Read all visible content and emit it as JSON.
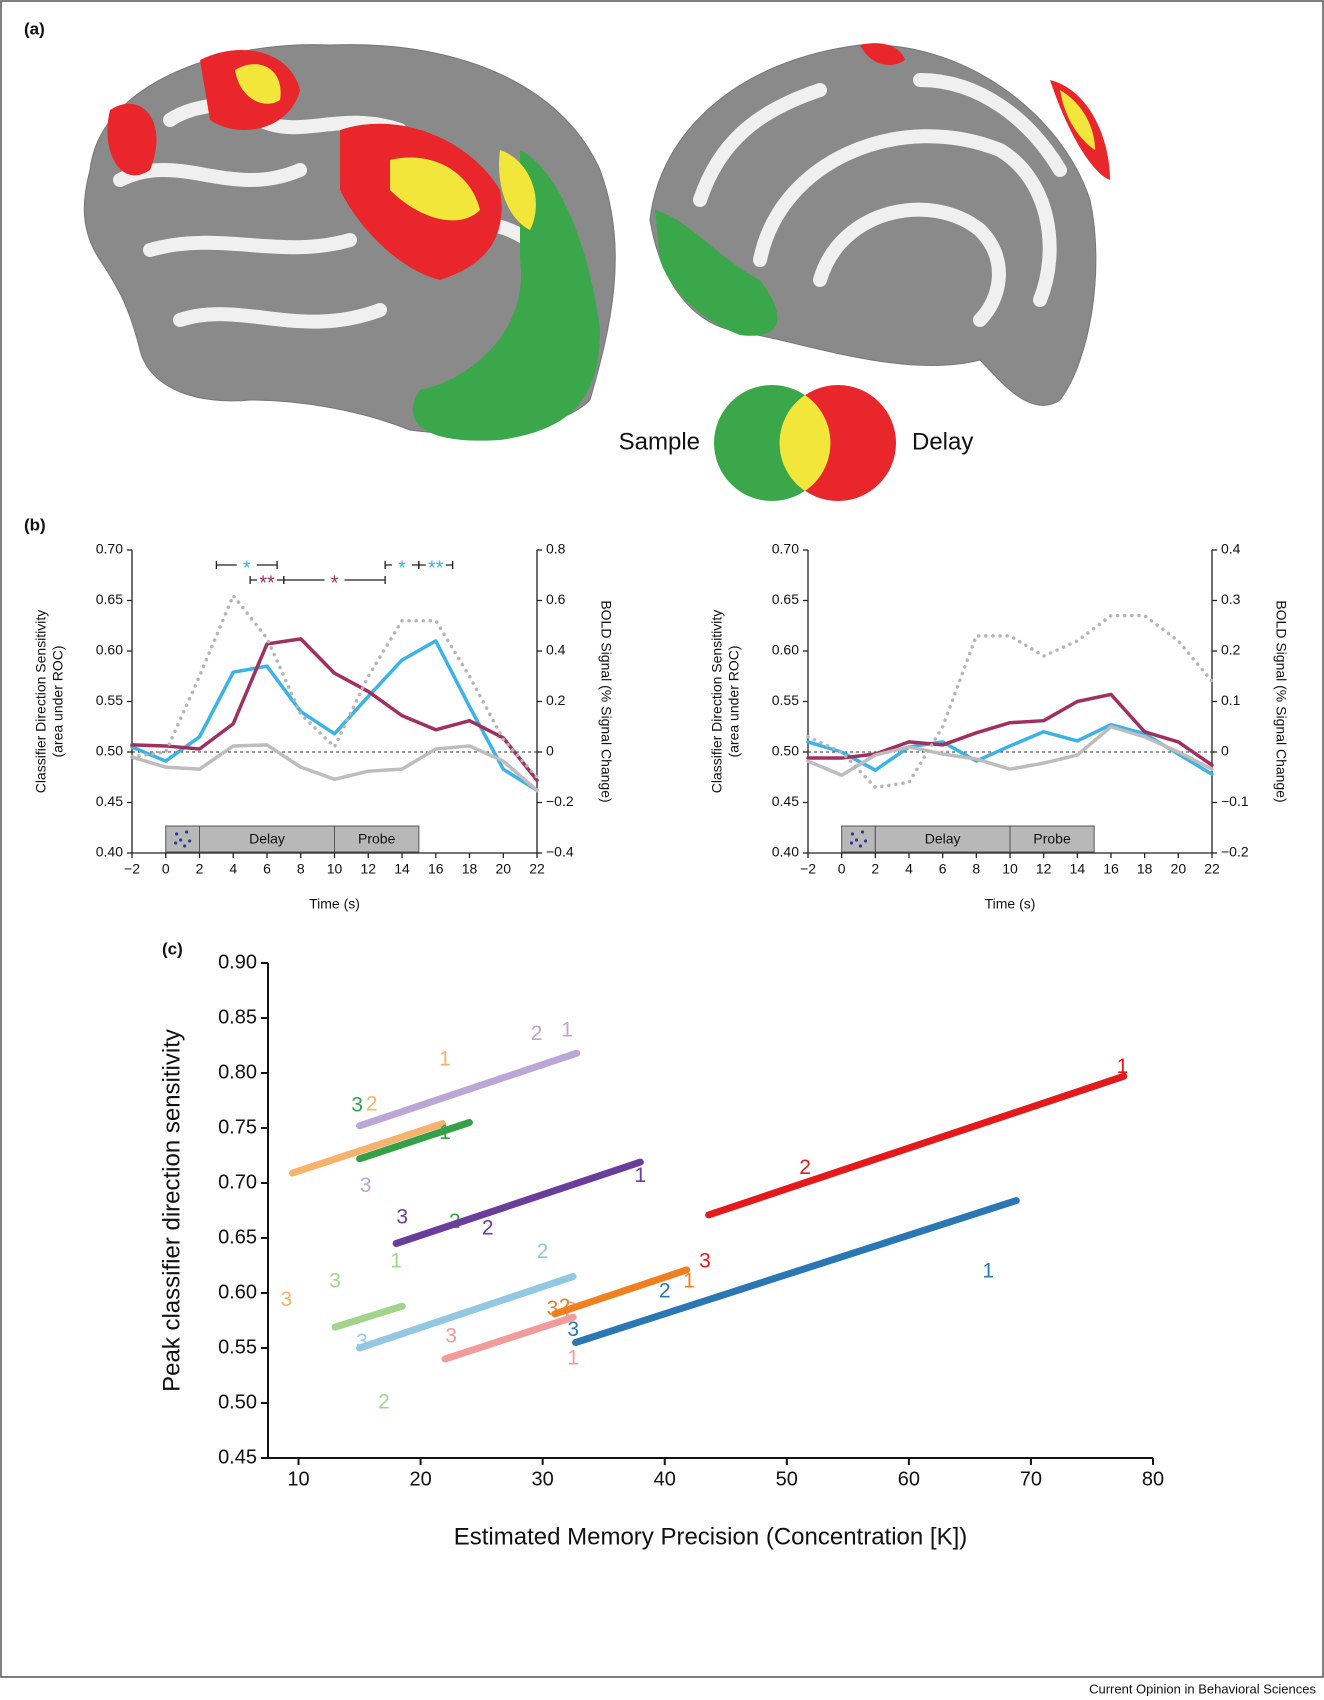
{
  "panel_labels": [
    "(a)",
    "(b)",
    "(c)"
  ],
  "venn": {
    "labels": [
      "Sample",
      "Delay"
    ],
    "colors": [
      "#3aa84a",
      "#e8262b",
      "#f2e63a"
    ]
  },
  "credit": "Current Opinion in Behavioral Sciences",
  "chart_data": [
    {
      "type": "line",
      "x_label": "Time (s)",
      "y_label": [
        "Classifier Direction Sensitivity",
        "(area under ROC)"
      ],
      "y2_label": "BOLD Signal (% Signal Change)",
      "x": [
        -2,
        0,
        2,
        4,
        6,
        8,
        10,
        12,
        14,
        16,
        18,
        20,
        22
      ],
      "xlim": [
        -2,
        22
      ],
      "xticks": [
        {
          "value": -2,
          "label": "−2"
        },
        0,
        2,
        4,
        6,
        8,
        10,
        12,
        14,
        16,
        18,
        20,
        22
      ],
      "ylim": [
        0.4,
        0.7
      ],
      "yticks": [
        {
          "value": 0.4,
          "label": "0.40"
        },
        0.45,
        {
          "value": 0.5,
          "label": "0.50"
        },
        0.55,
        {
          "value": 0.6,
          "label": "0.60"
        },
        0.65,
        {
          "value": 0.7,
          "label": "0.70"
        }
      ],
      "y2lim": [
        -0.4,
        0.8
      ],
      "y2ticks": [
        {
          "value": -0.4,
          "label": "−0.4"
        },
        {
          "value": -0.2,
          "label": "−0.2"
        },
        0,
        0.2,
        0.4,
        0.6,
        0.8
      ],
      "reference_y": 0.5,
      "epochs": [
        {
          "start": 0,
          "end": 2
        },
        {
          "label": "Delay",
          "start": 2,
          "end": 10
        },
        {
          "label": "Probe",
          "start": 10,
          "end": 15
        }
      ],
      "series": [
        {
          "color": "#3bb3e6",
          "values": [
            0.505,
            0.491,
            0.515,
            0.579,
            0.585,
            0.54,
            0.518,
            0.555,
            0.591,
            0.61,
            0.545,
            0.483,
            0.462
          ]
        },
        {
          "color": "#a0305f",
          "values": [
            0.507,
            0.506,
            0.503,
            0.528,
            0.607,
            0.612,
            0.578,
            0.56,
            0.536,
            0.522,
            0.531,
            0.514,
            0.472
          ]
        },
        {
          "color": "#bdbdbd",
          "values": [
            0.495,
            0.485,
            0.483,
            0.506,
            0.507,
            0.485,
            0.473,
            0.481,
            0.483,
            0.503,
            0.506,
            0.491,
            0.462
          ]
        },
        {
          "color": "#b5b5b5",
          "axis": "y2",
          "style": "dotted",
          "values": [
            -0.02,
            0.0,
            0.3,
            0.62,
            0.45,
            0.15,
            0.02,
            0.3,
            0.52,
            0.52,
            0.3,
            0.05,
            -0.1
          ]
        }
      ],
      "annotations": [
        {
          "text": "*",
          "color": "#3bb3e6",
          "from": 3,
          "to": 6.6
        },
        {
          "text": "**",
          "color": "#a0305f",
          "from": 5,
          "to": 7
        },
        {
          "text": "*",
          "color": "#a0305f",
          "from": 7,
          "to": 13
        },
        {
          "text": "*",
          "color": "#3bb3e6",
          "from": 13,
          "to": 15
        },
        {
          "text": "**",
          "color": "#3bb3e6",
          "from": 15,
          "to": 17
        }
      ]
    },
    {
      "type": "line",
      "x_label": "Time (s)",
      "y_label": [
        "Classifier Direction Sensitivity",
        "(area under ROC)"
      ],
      "y2_label": "BOLD Signal (% Signal Change)",
      "x": [
        -2,
        0,
        2,
        4,
        6,
        8,
        10,
        12,
        14,
        16,
        18,
        20,
        22
      ],
      "xlim": [
        -2,
        22
      ],
      "xticks": [
        {
          "value": -2,
          "label": "−2"
        },
        0,
        2,
        4,
        6,
        8,
        10,
        12,
        14,
        16,
        18,
        20,
        22
      ],
      "ylim": [
        0.4,
        0.7
      ],
      "yticks": [
        {
          "value": 0.4,
          "label": "0.40"
        },
        0.45,
        {
          "value": 0.5,
          "label": "0.50"
        },
        0.55,
        {
          "value": 0.6,
          "label": "0.60"
        },
        0.65,
        {
          "value": 0.7,
          "label": "0.70"
        }
      ],
      "y2lim": [
        -0.2,
        0.4
      ],
      "y2ticks": [
        {
          "value": -0.2,
          "label": "−0.2"
        },
        {
          "value": -0.1,
          "label": "−0.1"
        },
        0,
        0.1,
        0.2,
        0.3,
        0.4
      ],
      "reference_y": 0.5,
      "epochs": [
        {
          "start": 0,
          "end": 2
        },
        {
          "label": "Delay",
          "start": 2,
          "end": 10
        },
        {
          "label": "Probe",
          "start": 10,
          "end": 15
        }
      ],
      "series": [
        {
          "color": "#3bb3e6",
          "values": [
            0.51,
            0.5,
            0.482,
            0.505,
            0.51,
            0.491,
            0.506,
            0.52,
            0.511,
            0.527,
            0.518,
            0.498,
            0.478
          ]
        },
        {
          "color": "#a0305f",
          "values": [
            0.494,
            0.494,
            0.498,
            0.51,
            0.507,
            0.519,
            0.529,
            0.531,
            0.55,
            0.557,
            0.52,
            0.51,
            0.487
          ]
        },
        {
          "color": "#bdbdbd",
          "values": [
            0.491,
            0.477,
            0.497,
            0.505,
            0.498,
            0.493,
            0.483,
            0.489,
            0.497,
            0.525,
            0.515,
            0.5,
            0.483
          ]
        },
        {
          "color": "#b5b5b5",
          "axis": "y2",
          "style": "dotted",
          "values": [
            0.03,
            0.0,
            -0.07,
            -0.06,
            0.05,
            0.23,
            0.23,
            0.19,
            0.22,
            0.27,
            0.27,
            0.22,
            0.14
          ]
        }
      ]
    },
    {
      "type": "segment",
      "x_label": "Estimated Memory Precision (Concentration [K])",
      "y_label": "Peak classifier direction sensitivity",
      "xlim": [
        7.5,
        80
      ],
      "xticks": [
        10,
        20,
        30,
        40,
        50,
        60,
        70,
        80
      ],
      "ylim": [
        0.45,
        0.9
      ],
      "yticks": [
        0.45,
        {
          "value": 0.5,
          "label": "0.50"
        },
        0.55,
        {
          "value": 0.6,
          "label": "0.60"
        },
        0.65,
        {
          "value": 0.7,
          "label": "0.70"
        },
        0.75,
        {
          "value": 0.8,
          "label": "0.80"
        },
        0.85,
        {
          "value": 0.9,
          "label": "0.90"
        }
      ],
      "series": [
        {
          "color": "#bba6d6",
          "x": [
            15,
            32.8
          ],
          "y": [
            0.752,
            0.818
          ],
          "labels": [
            {
              "text": "2",
              "x": 29.5,
              "y": 0.835
            },
            {
              "text": "1",
              "x": 32,
              "y": 0.838
            },
            {
              "text": "3",
              "x": 15.5,
              "y": 0.697
            }
          ]
        },
        {
          "color": "#f7b26b",
          "x": [
            9.5,
            21.8
          ],
          "y": [
            0.709,
            0.754
          ],
          "labels": [
            {
              "text": "1",
              "x": 22,
              "y": 0.812
            },
            {
              "text": "2",
              "x": 16,
              "y": 0.771
            },
            {
              "text": "3",
              "x": 9,
              "y": 0.593
            }
          ]
        },
        {
          "color": "#36a048",
          "x": [
            15,
            24
          ],
          "y": [
            0.722,
            0.755
          ],
          "labels": [
            {
              "text": "1",
              "x": 22,
              "y": 0.745
            },
            {
              "text": "3",
              "x": 14.8,
              "y": 0.77
            },
            {
              "text": "2",
              "x": 22.8,
              "y": 0.664
            }
          ]
        },
        {
          "color": "#6a3d9a",
          "x": [
            18,
            38
          ],
          "y": [
            0.645,
            0.719
          ],
          "labels": [
            {
              "text": "1",
              "x": 38,
              "y": 0.706
            },
            {
              "text": "3",
              "x": 18.5,
              "y": 0.668
            },
            {
              "text": "2",
              "x": 25.5,
              "y": 0.658
            }
          ]
        },
        {
          "color": "#a2d48c",
          "x": [
            13,
            18.5
          ],
          "y": [
            0.569,
            0.588
          ],
          "labels": [
            {
              "text": "3",
              "x": 13,
              "y": 0.61
            },
            {
              "text": "1",
              "x": 18,
              "y": 0.628
            },
            {
              "text": "2",
              "x": 17,
              "y": 0.5
            }
          ]
        },
        {
          "color": "#93c8e2",
          "x": [
            15,
            32.5
          ],
          "y": [
            0.55,
            0.615
          ],
          "labels": [
            {
              "text": "2",
              "x": 30,
              "y": 0.637
            },
            {
              "text": "3",
              "x": 15.2,
              "y": 0.555
            }
          ]
        },
        {
          "color": "#f29b9b",
          "x": [
            22,
            32.5
          ],
          "y": [
            0.54,
            0.578
          ],
          "labels": [
            {
              "text": "3",
              "x": 22.5,
              "y": 0.56
            },
            {
              "text": "1",
              "x": 32.5,
              "y": 0.54
            },
            {
              "text": "2",
              "x": 32.3,
              "y": 0.584
            }
          ]
        },
        {
          "color": "#f07f20",
          "x": [
            31,
            41.8
          ],
          "y": [
            0.581,
            0.621
          ],
          "labels": [
            {
              "text": "1",
              "x": 42,
              "y": 0.61
            },
            {
              "text": "3",
              "x": 30.8,
              "y": 0.585
            },
            {
              "text": "2",
              "x": 31.8,
              "y": 0.587
            }
          ]
        },
        {
          "color": "#e3191c",
          "x": [
            43.6,
            77.6
          ],
          "y": [
            0.671,
            0.797
          ],
          "labels": [
            {
              "text": "1",
              "x": 77.5,
              "y": 0.805
            },
            {
              "text": "2",
              "x": 51.5,
              "y": 0.713
            },
            {
              "text": "3",
              "x": 43.3,
              "y": 0.628
            }
          ]
        },
        {
          "color": "#2b77b3",
          "x": [
            32.7,
            68.8
          ],
          "y": [
            0.555,
            0.684
          ],
          "labels": [
            {
              "text": "1",
              "x": 66.5,
              "y": 0.619
            },
            {
              "text": "2",
              "x": 40,
              "y": 0.601
            },
            {
              "text": "3",
              "x": 32.5,
              "y": 0.566
            }
          ]
        }
      ]
    }
  ]
}
